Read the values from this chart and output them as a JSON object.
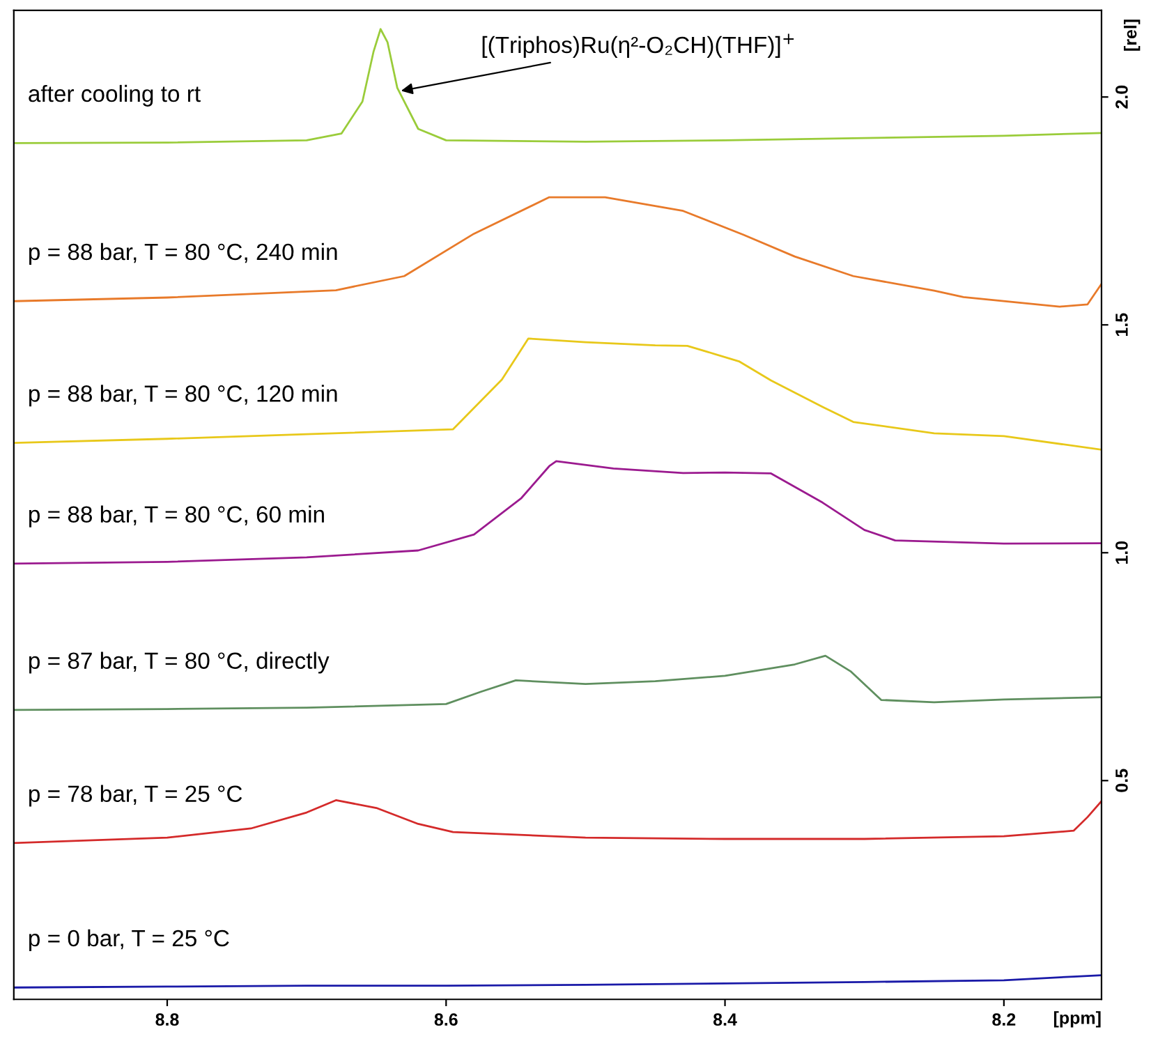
{
  "chart_data": {
    "type": "line",
    "xlabel": "[ppm]",
    "ylabel": "[rel]",
    "xlim": [
      8.91,
      8.13
    ],
    "ylim": [
      0.02,
      2.19
    ],
    "xticks": [
      8.8,
      8.6,
      8.4,
      8.2
    ],
    "yticks": [
      0.5,
      {
        "value": 1.0,
        "label": "1.0"
      },
      1.5,
      {
        "value": 2.0,
        "label": "2.0"
      }
    ],
    "grid": false,
    "marker": "none",
    "line_style": "solid",
    "annotations": [
      {
        "text": "[(Triphos)Ru(η²-O₂CH)(THF)]$^{+}$",
        "x": 8.635,
        "y": 2.012
      }
    ],
    "series": [
      {
        "name": "p = 0 bar, T = 25 °C",
        "color": "#1a1aa8",
        "x": [
          8.91,
          8.8,
          8.7,
          8.6,
          8.5,
          8.4,
          8.3,
          8.2,
          8.15,
          8.13
        ],
        "values": [
          0.046,
          0.048,
          0.05,
          0.05,
          0.052,
          0.055,
          0.058,
          0.062,
          0.07,
          0.073
        ]
      },
      {
        "name": "p = 78 bar, T = 25 °C",
        "color": "#d42a2a",
        "x": [
          8.91,
          8.8,
          8.74,
          8.7,
          8.679,
          8.65,
          8.62,
          8.595,
          8.5,
          8.4,
          8.3,
          8.2,
          8.15,
          8.14,
          8.13
        ],
        "values": [
          0.363,
          0.375,
          0.395,
          0.43,
          0.457,
          0.44,
          0.405,
          0.387,
          0.375,
          0.372,
          0.372,
          0.378,
          0.39,
          0.42,
          0.455
        ]
      },
      {
        "name": "p = 87 bar, T = 80 °C, directly",
        "color": "#5f8f5f",
        "x": [
          8.91,
          8.8,
          8.7,
          8.6,
          8.575,
          8.55,
          8.5,
          8.45,
          8.4,
          8.35,
          8.328,
          8.31,
          8.288,
          8.25,
          8.2,
          8.13
        ],
        "values": [
          0.655,
          0.657,
          0.66,
          0.668,
          0.695,
          0.72,
          0.712,
          0.718,
          0.73,
          0.755,
          0.774,
          0.74,
          0.677,
          0.672,
          0.678,
          0.683
        ]
      },
      {
        "name": "p = 88 bar, T = 80 °C, 60 min",
        "color": "#9b1a8f",
        "x": [
          8.91,
          8.8,
          8.7,
          8.62,
          8.58,
          8.546,
          8.526,
          8.521,
          8.48,
          8.43,
          8.4,
          8.367,
          8.33,
          8.3,
          8.278,
          8.2,
          8.13
        ],
        "values": [
          0.976,
          0.98,
          0.99,
          1.005,
          1.04,
          1.12,
          1.19,
          1.201,
          1.185,
          1.175,
          1.176,
          1.174,
          1.11,
          1.05,
          1.027,
          1.02,
          1.021
        ]
      },
      {
        "name": "p = 88 bar, T = 80 °C, 120 min",
        "color": "#e8c81a",
        "x": [
          8.91,
          8.8,
          8.7,
          8.595,
          8.56,
          8.541,
          8.5,
          8.45,
          8.427,
          8.39,
          8.367,
          8.33,
          8.308,
          8.25,
          8.2,
          8.13
        ],
        "values": [
          1.241,
          1.25,
          1.26,
          1.271,
          1.38,
          1.47,
          1.462,
          1.455,
          1.454,
          1.42,
          1.378,
          1.32,
          1.287,
          1.262,
          1.256,
          1.226
        ]
      },
      {
        "name": "p = 88 bar, T = 80 °C, 240 min",
        "color": "#e87a2a",
        "x": [
          8.91,
          8.8,
          8.679,
          8.63,
          8.58,
          8.526,
          8.486,
          8.43,
          8.387,
          8.35,
          8.308,
          8.25,
          8.229,
          8.16,
          8.14,
          8.13
        ],
        "values": [
          1.552,
          1.56,
          1.576,
          1.607,
          1.7,
          1.78,
          1.78,
          1.75,
          1.698,
          1.65,
          1.607,
          1.575,
          1.561,
          1.54,
          1.545,
          1.59
        ]
      },
      {
        "name": "after cooling to rt",
        "color": "#9acc3a",
        "x": [
          8.91,
          8.8,
          8.7,
          8.675,
          8.66,
          8.652,
          8.647,
          8.642,
          8.635,
          8.62,
          8.6,
          8.5,
          8.4,
          8.3,
          8.2,
          8.13
        ],
        "values": [
          1.899,
          1.9,
          1.905,
          1.92,
          1.99,
          2.1,
          2.149,
          2.12,
          2.02,
          1.93,
          1.905,
          1.902,
          1.905,
          1.91,
          1.915,
          1.921
        ]
      }
    ]
  }
}
